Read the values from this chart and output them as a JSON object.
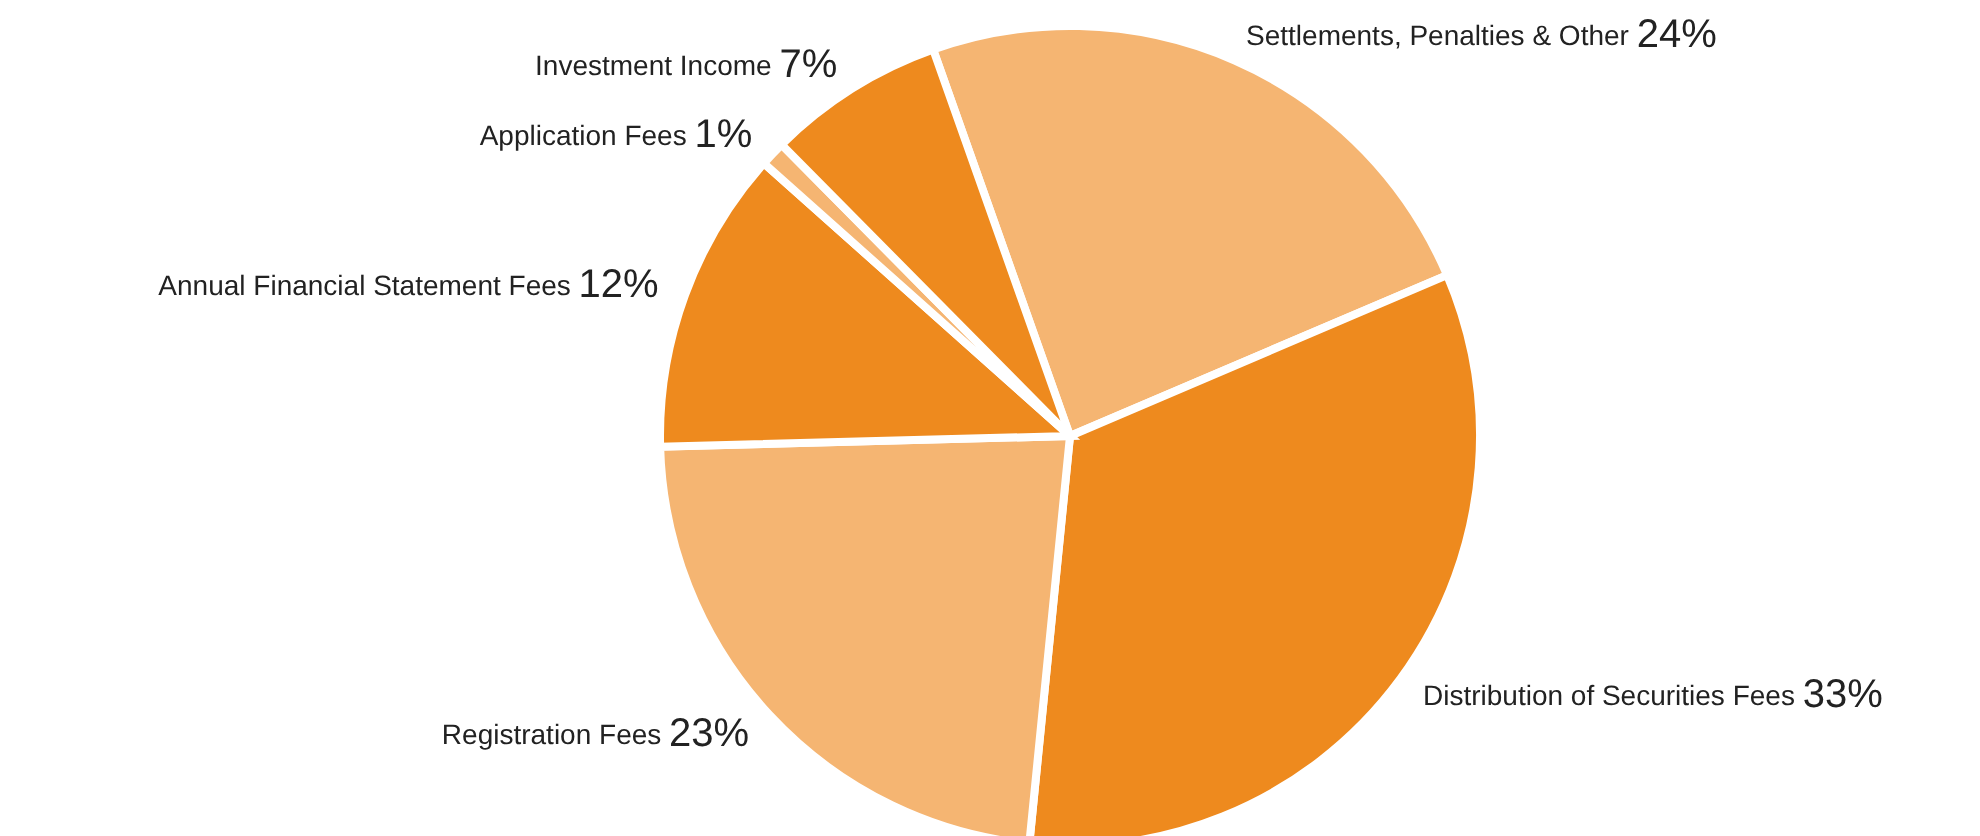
{
  "chart_data": {
    "type": "pie",
    "categories": [
      "Settlements, Penalties & Other",
      "Distribution of Securities Fees",
      "Registration Fees",
      "Annual Financial Statement Fees",
      "Application Fees",
      "Investment Income"
    ],
    "values": [
      24,
      33,
      23,
      12,
      1,
      7
    ],
    "value_labels": [
      "24%",
      "33%",
      "23%",
      "12%",
      "1%",
      "7%"
    ],
    "colors": [
      "#f5b572",
      "#ee8a1e",
      "#f5b572",
      "#ee8a1e",
      "#f5b572",
      "#ee8a1e"
    ],
    "legend": false
  }
}
